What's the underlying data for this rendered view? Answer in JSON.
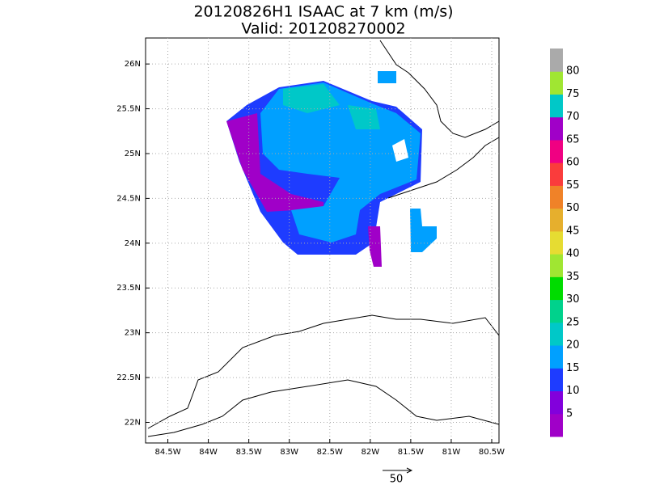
{
  "chart_data": {
    "type": "map",
    "title": "20120826H1 ISAAC at 7 km (m/s)",
    "subtitle": "Valid: 201208270002",
    "xlim": [
      -84.775,
      -80.41
    ],
    "ylim": [
      21.77,
      26.29
    ],
    "xticks": [
      {
        "value": -84.5,
        "label": "84.5W"
      },
      {
        "value": -84,
        "label": "84W"
      },
      {
        "value": -83.5,
        "label": "83.5W"
      },
      {
        "value": -83,
        "label": "83W"
      },
      {
        "value": -82.5,
        "label": "82.5W"
      },
      {
        "value": -82,
        "label": "82W"
      },
      {
        "value": -81.5,
        "label": "81.5W"
      },
      {
        "value": -81,
        "label": "81W"
      },
      {
        "value": -80.5,
        "label": "80.5W"
      }
    ],
    "yticks": [
      {
        "value": 22,
        "label": "22N"
      },
      {
        "value": 22.5,
        "label": "22.5N"
      },
      {
        "value": 23,
        "label": "23N"
      },
      {
        "value": 23.5,
        "label": "23.5N"
      },
      {
        "value": 24,
        "label": "24N"
      },
      {
        "value": 24.5,
        "label": "24.5N"
      },
      {
        "value": 25,
        "label": "25N"
      },
      {
        "value": 25.5,
        "label": "25.5N"
      },
      {
        "value": 26,
        "label": "26N"
      }
    ],
    "grid": true,
    "colorbar": {
      "ticks": [
        5,
        10,
        15,
        20,
        25,
        30,
        35,
        40,
        45,
        50,
        55,
        60,
        65,
        70,
        75,
        80
      ],
      "colors": [
        "#a000c8",
        "#8200dc",
        "#1e3cff",
        "#00a0ff",
        "#00c8c8",
        "#00d28c",
        "#00dc00",
        "#a0e632",
        "#e6dc32",
        "#e6af2d",
        "#f08228",
        "#fa3c3c",
        "#f00082",
        "#a000c8",
        "#00c8c8",
        "#a0e632",
        "#aaaaaa"
      ]
    },
    "reference_vector": 50
  }
}
